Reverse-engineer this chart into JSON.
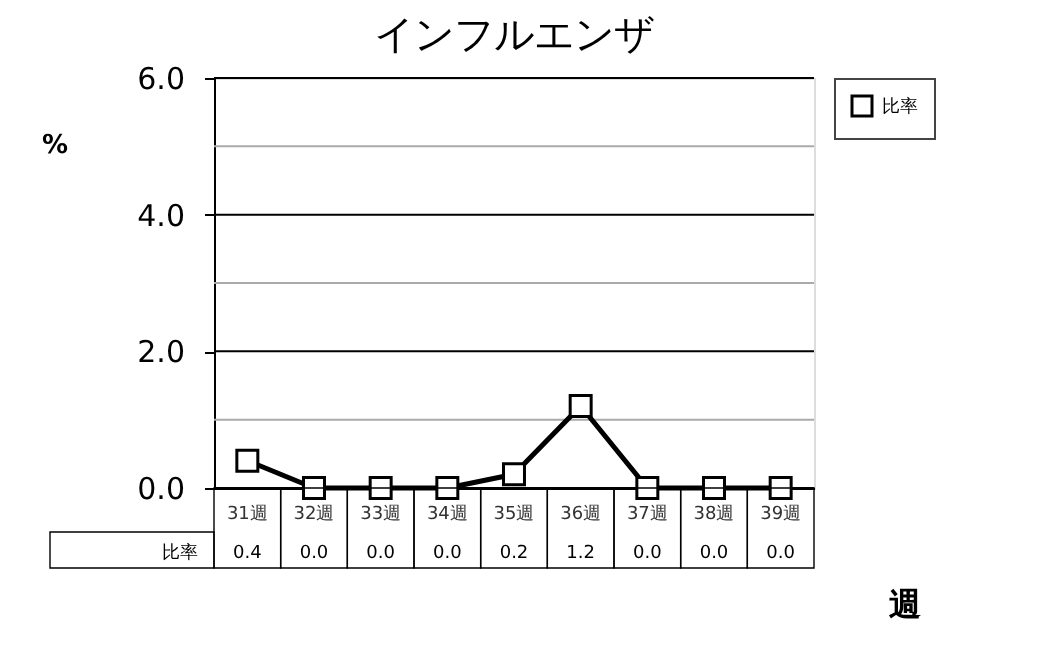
{
  "chart_data": {
    "type": "line",
    "title": "インフルエンザ",
    "xlabel": "週",
    "ylabel": "%",
    "categories": [
      "31週",
      "32週",
      "33週",
      "34週",
      "35週",
      "36週",
      "37週",
      "38週",
      "39週"
    ],
    "series": [
      {
        "name": "比率",
        "color": "#000000",
        "values": [
          0.4,
          0.0,
          0.0,
          0.0,
          0.2,
          1.2,
          0.0,
          0.0,
          0.0
        ],
        "value_labels": [
          "0.4",
          "0.0",
          "0.0",
          "0.0",
          "0.2",
          "1.2",
          "0.0",
          "0.0",
          "0.0"
        ]
      }
    ],
    "ylim": [
      0,
      6
    ],
    "yticks": [
      {
        "value": 0,
        "label": "0.0"
      },
      {
        "value": 1,
        "label": null
      },
      {
        "value": 2,
        "label": "2.0"
      },
      {
        "value": 3,
        "label": null
      },
      {
        "value": 4,
        "label": "4.0"
      },
      {
        "value": 5,
        "label": null
      },
      {
        "value": 6,
        "label": "6.0"
      }
    ],
    "grid": true,
    "legend": "top right",
    "marker": "square",
    "line_style": "solid"
  }
}
